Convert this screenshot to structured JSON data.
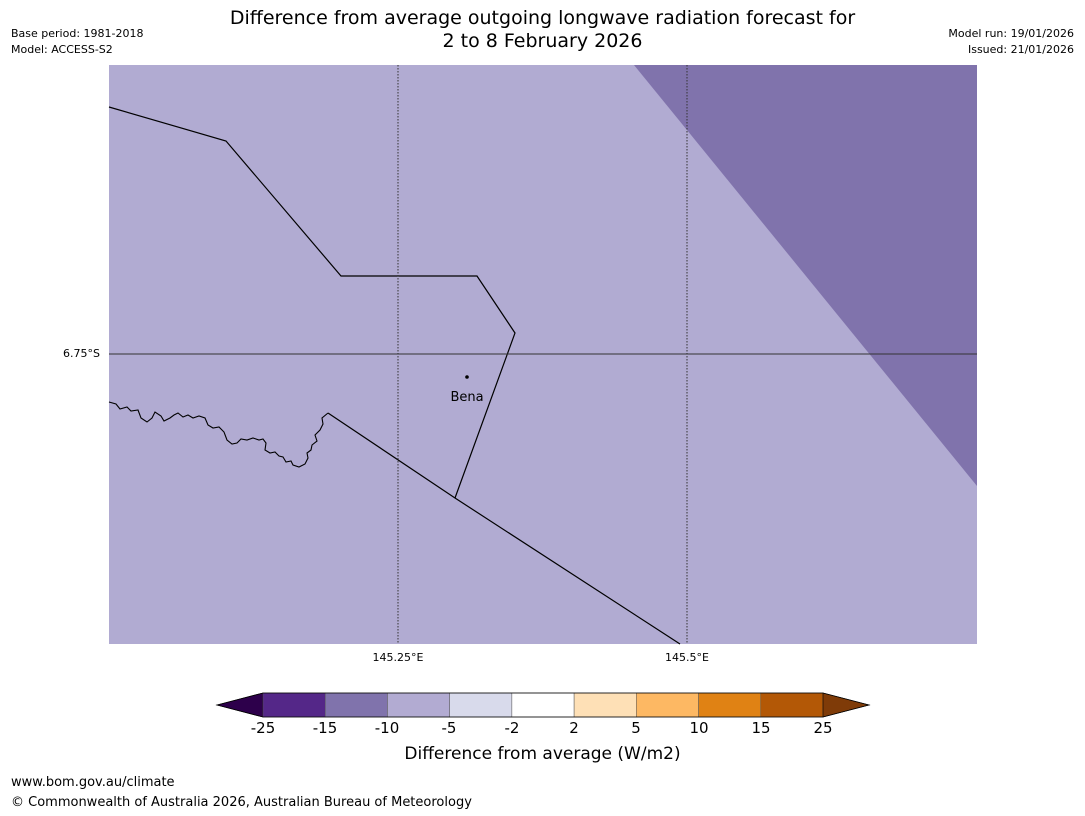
{
  "header": {
    "title_line1": "Difference from average outgoing longwave radiation forecast for",
    "title_line2": "2 to 8 February 2026",
    "base_period": "Base period: 1981-2018",
    "model": "Model: ACCESS-S2",
    "model_run": "Model run: 19/01/2026",
    "issued": "Issued: 21/01/2026"
  },
  "map": {
    "place_label": "Bena",
    "lat_label": "6.75°S",
    "lon_labels": [
      "145.25°E",
      "145.5°E"
    ],
    "colors": {
      "background_fill": "#b1abd2",
      "anomaly_fill": "#8073ac",
      "boundary": "#000000",
      "gridline": "#333333"
    }
  },
  "colorbar": {
    "ticks": [
      "-25",
      "-15",
      "-10",
      "-5",
      "-2",
      "2",
      "5",
      "10",
      "15",
      "25"
    ],
    "colors": [
      "#2d004b",
      "#542788",
      "#8073ac",
      "#b2abd2",
      "#d8daeb",
      "#ffffff",
      "#fee0b6",
      "#fdb863",
      "#e08214",
      "#b35806",
      "#7f3b08"
    ],
    "label": "Difference from average (W/m2)"
  },
  "footer": {
    "website": "www.bom.gov.au/climate",
    "copyright": "© Commonwealth of Australia 2026, Australian Bureau of Meteorology"
  }
}
